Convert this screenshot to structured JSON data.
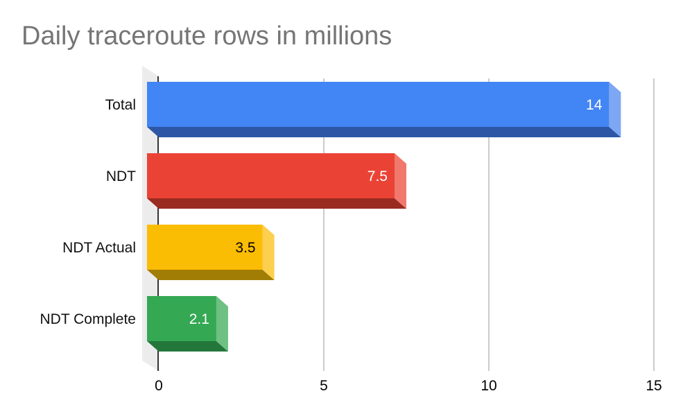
{
  "chart_data": {
    "type": "bar",
    "orientation": "horizontal",
    "effect": "3d",
    "title": "Daily traceroute rows in millions",
    "xlabel": "",
    "ylabel": "",
    "xlim": [
      0,
      15
    ],
    "x_ticks": [
      0,
      5,
      10,
      15
    ],
    "x_tick_labels": [
      "0",
      "5",
      "10",
      "15"
    ],
    "grid": true,
    "legend": "none",
    "categories": [
      "Total",
      "NDT",
      "NDT Actual",
      "NDT Complete"
    ],
    "values": [
      14,
      7.5,
      3.5,
      2.1
    ],
    "value_labels": [
      "14",
      "7.5",
      "3.5",
      "2.1"
    ],
    "bar_colors": [
      {
        "face": "#4285F4",
        "side": "#7DA7F3",
        "bottom": "#2D57A5",
        "label": "#ffffff"
      },
      {
        "face": "#EA4335",
        "side": "#F0786C",
        "bottom": "#9A2B21",
        "label": "#ffffff"
      },
      {
        "face": "#FBBC04",
        "side": "#FCCF4E",
        "bottom": "#A27D05",
        "label": "#000000"
      },
      {
        "face": "#34A853",
        "side": "#6FC083",
        "bottom": "#23773B",
        "label": "#ffffff"
      }
    ],
    "colors": {
      "title_text": "#757575",
      "axis_line": "#333333",
      "gridline": "#cbcbcb",
      "wall": "#ececec",
      "tick_text": "#000000",
      "category_text": "#111111",
      "background": "#ffffff"
    }
  }
}
